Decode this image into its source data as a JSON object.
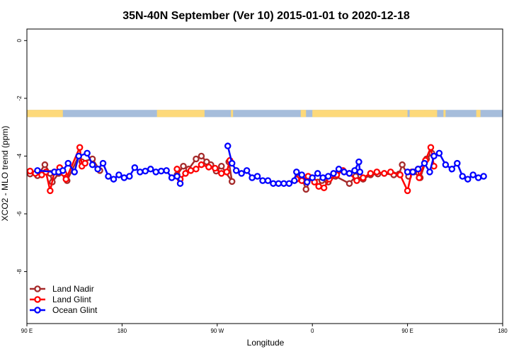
{
  "chart_data": {
    "type": "line",
    "title": "35N-40N September (Ver 10)   2015-01-01 to 2020-12-18",
    "xlabel": "Longitude",
    "ylabel": "XCO2 - MLO trend (ppm)",
    "xlim": [
      90,
      540
    ],
    "ylim": [
      -9.8,
      0.4
    ],
    "x_ticks": [
      {
        "value": 90,
        "label": "90 E"
      },
      {
        "value": 180,
        "label": "180"
      },
      {
        "value": 270,
        "label": "90 W"
      },
      {
        "value": 360,
        "label": "0"
      },
      {
        "value": 450,
        "label": "90 E"
      },
      {
        "value": 540,
        "label": "180"
      }
    ],
    "y_ticks": [
      {
        "value": 0,
        "label": "0"
      },
      {
        "value": -2,
        "label": "-2"
      },
      {
        "value": -4,
        "label": "-4"
      },
      {
        "value": -6,
        "label": "-6"
      },
      {
        "value": -8,
        "label": "-8"
      }
    ],
    "grid": false,
    "legend_position": "bottom-left",
    "land_ocean_strip": {
      "y_range": [
        -2.65,
        -2.4
      ],
      "ocean_color": "#a6bddb",
      "land_color": "#fdd97a",
      "land_segments": [
        [
          90,
          122
        ],
        [
          104,
          124
        ],
        [
          213,
          258
        ],
        [
          283,
          285
        ],
        [
          349,
          354
        ],
        [
          360,
          450
        ],
        [
          452,
          467
        ],
        [
          466,
          478
        ],
        [
          484,
          486
        ],
        [
          515,
          519
        ]
      ]
    },
    "series": [
      {
        "name": "Land Nadir",
        "color": "#a52a2a",
        "points": [
          [
            93,
            -4.62
          ],
          [
            100,
            -4.68
          ],
          [
            107,
            -4.3
          ],
          [
            112,
            -4.6
          ],
          [
            114,
            -4.9
          ],
          [
            120,
            -4.6
          ],
          [
            127,
            -4.7
          ],
          [
            128,
            -4.85
          ],
          [
            139,
            -4.0
          ],
          [
            142,
            -4.2
          ],
          [
            152,
            -4.1
          ],
          [
            159,
            -4.5
          ],
          [
            232,
            -4.65
          ],
          [
            238,
            -4.35
          ],
          [
            243,
            -4.45
          ],
          [
            250,
            -4.1
          ],
          [
            255,
            -4.0
          ],
          [
            260,
            -4.2
          ],
          [
            264,
            -4.3
          ],
          [
            269,
            -4.52
          ],
          [
            274,
            -4.35
          ],
          [
            284,
            -4.88
          ],
          [
            281,
            -4.2
          ],
          [
            346,
            -4.75
          ],
          [
            351,
            -4.85
          ],
          [
            354,
            -5.15
          ],
          [
            359,
            -4.75
          ],
          [
            365,
            -4.9
          ],
          [
            369,
            -4.85
          ],
          [
            375,
            -4.9
          ],
          [
            382,
            -4.7
          ],
          [
            395,
            -4.95
          ],
          [
            401,
            -4.7
          ],
          [
            408,
            -4.8
          ],
          [
            415,
            -4.65
          ],
          [
            422,
            -4.62
          ],
          [
            428,
            -4.6
          ],
          [
            437,
            -4.65
          ],
          [
            442,
            -4.62
          ],
          [
            445,
            -4.3
          ],
          [
            451,
            -4.7
          ],
          [
            456,
            -4.55
          ],
          [
            462,
            -4.75
          ],
          [
            468,
            -4.1
          ],
          [
            473,
            -3.9
          ]
        ]
      },
      {
        "name": "Land Glint",
        "color": "#ff0000",
        "points": [
          [
            93,
            -4.52
          ],
          [
            98,
            -4.6
          ],
          [
            104,
            -4.65
          ],
          [
            108,
            -4.55
          ],
          [
            112,
            -5.2
          ],
          [
            116,
            -4.55
          ],
          [
            121,
            -4.4
          ],
          [
            125,
            -4.6
          ],
          [
            127,
            -4.8
          ],
          [
            140,
            -3.7
          ],
          [
            142,
            -4.35
          ],
          [
            145,
            -4.25
          ],
          [
            232,
            -4.45
          ],
          [
            235,
            -4.8
          ],
          [
            240,
            -4.6
          ],
          [
            245,
            -4.5
          ],
          [
            250,
            -4.45
          ],
          [
            255,
            -4.3
          ],
          [
            262,
            -4.38
          ],
          [
            268,
            -4.42
          ],
          [
            274,
            -4.6
          ],
          [
            279,
            -4.55
          ],
          [
            282,
            -4.15
          ],
          [
            345,
            -4.8
          ],
          [
            350,
            -4.85
          ],
          [
            356,
            -4.7
          ],
          [
            362,
            -4.9
          ],
          [
            366,
            -5.05
          ],
          [
            371,
            -5.1
          ],
          [
            376,
            -4.8
          ],
          [
            383,
            -4.65
          ],
          [
            389,
            -4.5
          ],
          [
            395,
            -4.6
          ],
          [
            402,
            -4.85
          ],
          [
            408,
            -4.75
          ],
          [
            415,
            -4.6
          ],
          [
            421,
            -4.55
          ],
          [
            428,
            -4.6
          ],
          [
            434,
            -4.55
          ],
          [
            443,
            -4.65
          ],
          [
            450,
            -5.2
          ],
          [
            454,
            -4.55
          ],
          [
            460,
            -4.45
          ],
          [
            461,
            -4.75
          ],
          [
            467,
            -4.15
          ],
          [
            472,
            -3.7
          ],
          [
            475,
            -4.35
          ]
        ]
      },
      {
        "name": "Ocean Glint",
        "color": "#0000ff",
        "points": [
          [
            100,
            -4.5
          ],
          [
            116,
            -4.55
          ],
          [
            120,
            -4.55
          ],
          [
            124,
            -4.5
          ],
          [
            129,
            -4.25
          ],
          [
            135,
            -4.55
          ],
          [
            139,
            -4.0
          ],
          [
            147,
            -3.9
          ],
          [
            152,
            -4.3
          ],
          [
            157,
            -4.45
          ],
          [
            162,
            -4.25
          ],
          [
            167,
            -4.7
          ],
          [
            172,
            -4.8
          ],
          [
            177,
            -4.65
          ],
          [
            182,
            -4.75
          ],
          [
            187,
            -4.7
          ],
          [
            192,
            -4.4
          ],
          [
            197,
            -4.55
          ],
          [
            202,
            -4.52
          ],
          [
            207,
            -4.45
          ],
          [
            212,
            -4.55
          ],
          [
            217,
            -4.52
          ],
          [
            222,
            -4.5
          ],
          [
            227,
            -4.75
          ],
          [
            232,
            -4.7
          ],
          [
            235,
            -4.95
          ],
          [
            280,
            -3.65
          ],
          [
            284,
            -4.25
          ],
          [
            288,
            -4.5
          ],
          [
            293,
            -4.6
          ],
          [
            298,
            -4.5
          ],
          [
            303,
            -4.75
          ],
          [
            308,
            -4.7
          ],
          [
            313,
            -4.85
          ],
          [
            318,
            -4.85
          ],
          [
            323,
            -4.95
          ],
          [
            328,
            -4.95
          ],
          [
            333,
            -4.95
          ],
          [
            338,
            -4.95
          ],
          [
            343,
            -4.85
          ],
          [
            345,
            -4.55
          ],
          [
            350,
            -4.65
          ],
          [
            355,
            -4.9
          ],
          [
            360,
            -4.75
          ],
          [
            365,
            -4.6
          ],
          [
            370,
            -4.75
          ],
          [
            375,
            -4.7
          ],
          [
            380,
            -4.6
          ],
          [
            385,
            -4.45
          ],
          [
            390,
            -4.55
          ],
          [
            395,
            -4.6
          ],
          [
            400,
            -4.5
          ],
          [
            404,
            -4.2
          ],
          [
            405,
            -4.55
          ],
          [
            450,
            -4.55
          ],
          [
            455,
            -4.55
          ],
          [
            460,
            -4.45
          ],
          [
            466,
            -4.25
          ],
          [
            471,
            -4.55
          ],
          [
            475,
            -4.0
          ],
          [
            480,
            -3.9
          ],
          [
            486,
            -4.3
          ],
          [
            492,
            -4.45
          ],
          [
            497,
            -4.25
          ],
          [
            502,
            -4.7
          ],
          [
            507,
            -4.8
          ],
          [
            512,
            -4.65
          ],
          [
            517,
            -4.75
          ],
          [
            522,
            -4.7
          ]
        ]
      }
    ]
  }
}
